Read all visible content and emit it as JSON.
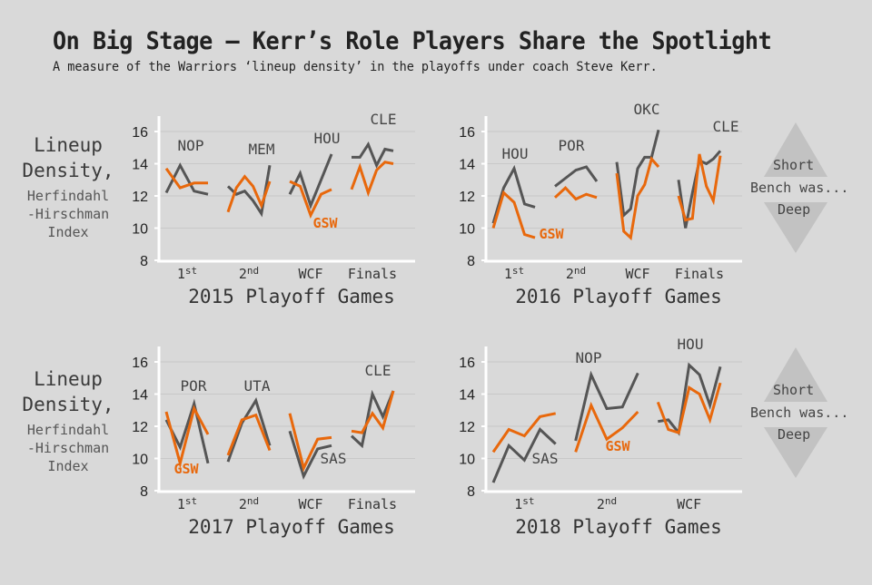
{
  "title": "On Big Stage – Kerr’s Role Players Share the Spotlight",
  "subtitle": "A measure of the Warriors ‘lineup density’ in the playoffs under coach Steve Kerr.",
  "ylabel": {
    "line1": "Lineup",
    "line2": "Density,",
    "line3": "Herfindahl",
    "line4": "-Hirschman",
    "line5": "Index"
  },
  "legend": {
    "top": "Short",
    "middle": "Bench was...",
    "bottom": "Deep"
  },
  "colors": {
    "gsw": "#e8680c",
    "opponent": "#555555",
    "background": "#d9d9d9",
    "grid": "#c8c8c8",
    "axis": "#ffffff",
    "legend_triangle": "#c2c2c2"
  },
  "chart_data": [
    {
      "type": "line",
      "title": "2015 Playoff Games",
      "xlabel": "2015 Playoff Games",
      "ylabel": "Lineup Density, Herfindahl-Hirschman Index",
      "ylim": [
        8,
        17
      ],
      "yticks": [
        8,
        10,
        12,
        14,
        16
      ],
      "grid": true,
      "rounds": [
        {
          "label": "1",
          "sup": "st",
          "opponent": "NOP",
          "opp": [
            12.2,
            13.9,
            12.3,
            12.1
          ],
          "gsw": [
            13.7,
            12.5,
            12.8,
            12.8
          ]
        },
        {
          "label": "2",
          "sup": "nd",
          "opponent": "MEM",
          "opp": [
            12.6,
            12.1,
            12.3,
            11.7,
            10.9,
            13.9
          ],
          "gsw": [
            11.0,
            12.5,
            13.2,
            12.6,
            11.4,
            12.9
          ]
        },
        {
          "label": "WCF",
          "sup": "",
          "opponent": "HOU",
          "opp": [
            12.1,
            13.4,
            11.4,
            13.0,
            14.6
          ],
          "gsw": [
            12.9,
            12.6,
            10.8,
            12.1,
            12.4
          ],
          "gsw_label": "GSW"
        },
        {
          "label": "Finals",
          "sup": "",
          "opponent": "CLE",
          "opp": [
            14.4,
            14.4,
            15.2,
            13.9,
            14.9,
            14.8
          ],
          "gsw": [
            12.4,
            13.8,
            12.2,
            13.6,
            14.1,
            14.0
          ]
        }
      ]
    },
    {
      "type": "line",
      "title": "2016 Playoff Games",
      "xlabel": "2016 Playoff Games",
      "ylim": [
        8,
        17
      ],
      "yticks": [
        8,
        10,
        12,
        14,
        16
      ],
      "grid": true,
      "rounds": [
        {
          "label": "1",
          "sup": "st",
          "opponent": "HOU",
          "opp": [
            10.3,
            12.5,
            13.7,
            11.5,
            11.3
          ],
          "gsw": [
            10.0,
            12.2,
            11.6,
            9.6,
            9.4
          ],
          "gsw_label": "GSW"
        },
        {
          "label": "2",
          "sup": "nd",
          "opponent": "POR",
          "opp": [
            12.6,
            13.1,
            13.6,
            13.8,
            12.9
          ],
          "gsw": [
            11.9,
            12.5,
            11.8,
            12.1,
            11.9
          ]
        },
        {
          "label": "WCF",
          "sup": "",
          "opponent": "OKC",
          "opp": [
            14.1,
            10.8,
            11.2,
            13.7,
            14.4,
            14.4,
            16.1
          ],
          "gsw": [
            13.4,
            9.8,
            9.4,
            12.0,
            12.7,
            14.3,
            13.8
          ]
        },
        {
          "label": "Finals",
          "sup": "",
          "opponent": "CLE",
          "opp": [
            13.0,
            10.0,
            12.2,
            14.2,
            14.0,
            14.3,
            14.8
          ],
          "gsw": [
            12.0,
            10.5,
            10.6,
            14.6,
            12.6,
            11.7,
            14.5
          ]
        }
      ]
    },
    {
      "type": "line",
      "title": "2017 Playoff Games",
      "xlabel": "2017 Playoff Games",
      "ylim": [
        8,
        17
      ],
      "yticks": [
        8,
        10,
        12,
        14,
        16
      ],
      "grid": true,
      "rounds": [
        {
          "label": "1",
          "sup": "st",
          "opponent": "POR",
          "opp": [
            12.4,
            10.7,
            13.4,
            9.7
          ],
          "gsw": [
            12.9,
            9.7,
            13.1,
            11.5
          ],
          "gsw_label": "GSW"
        },
        {
          "label": "2",
          "sup": "nd",
          "opponent": "UTA",
          "opp": [
            9.8,
            12.2,
            13.6,
            10.8
          ],
          "gsw": [
            10.2,
            12.4,
            12.7,
            10.5
          ]
        },
        {
          "label": "WCF",
          "sup": "",
          "opponent": "SAS",
          "opp": [
            11.7,
            8.9,
            10.6,
            10.8
          ],
          "gsw": [
            12.8,
            9.4,
            11.2,
            11.3
          ]
        },
        {
          "label": "Finals",
          "sup": "",
          "opponent": "CLE",
          "opp": [
            11.4,
            10.8,
            14.0,
            12.6,
            14.2
          ],
          "gsw": [
            11.7,
            11.6,
            12.8,
            11.9,
            14.2
          ]
        }
      ]
    },
    {
      "type": "line",
      "title": "2018 Playoff Games",
      "xlabel": "2018 Playoff Games",
      "ylim": [
        8,
        17
      ],
      "yticks": [
        8,
        10,
        12,
        14,
        16
      ],
      "grid": true,
      "rounds": [
        {
          "label": "1",
          "sup": "st",
          "opponent": "SAS",
          "opp": [
            8.5,
            10.8,
            9.9,
            11.8,
            10.9
          ],
          "gsw": [
            10.4,
            11.8,
            11.4,
            12.6,
            12.8
          ]
        },
        {
          "label": "2",
          "sup": "nd",
          "opponent": "NOP",
          "opp": [
            11.1,
            15.2,
            13.1,
            13.2,
            15.3
          ],
          "gsw": [
            10.4,
            13.3,
            11.2,
            11.9,
            12.9
          ],
          "gsw_label": "GSW"
        },
        {
          "label": "WCF",
          "sup": "",
          "opponent": "HOU",
          "opp": [
            12.3,
            12.4,
            11.6,
            15.8,
            15.2,
            13.3,
            15.7
          ],
          "gsw": [
            13.5,
            11.8,
            11.6,
            14.4,
            14.0,
            12.4,
            14.7
          ]
        }
      ]
    }
  ]
}
